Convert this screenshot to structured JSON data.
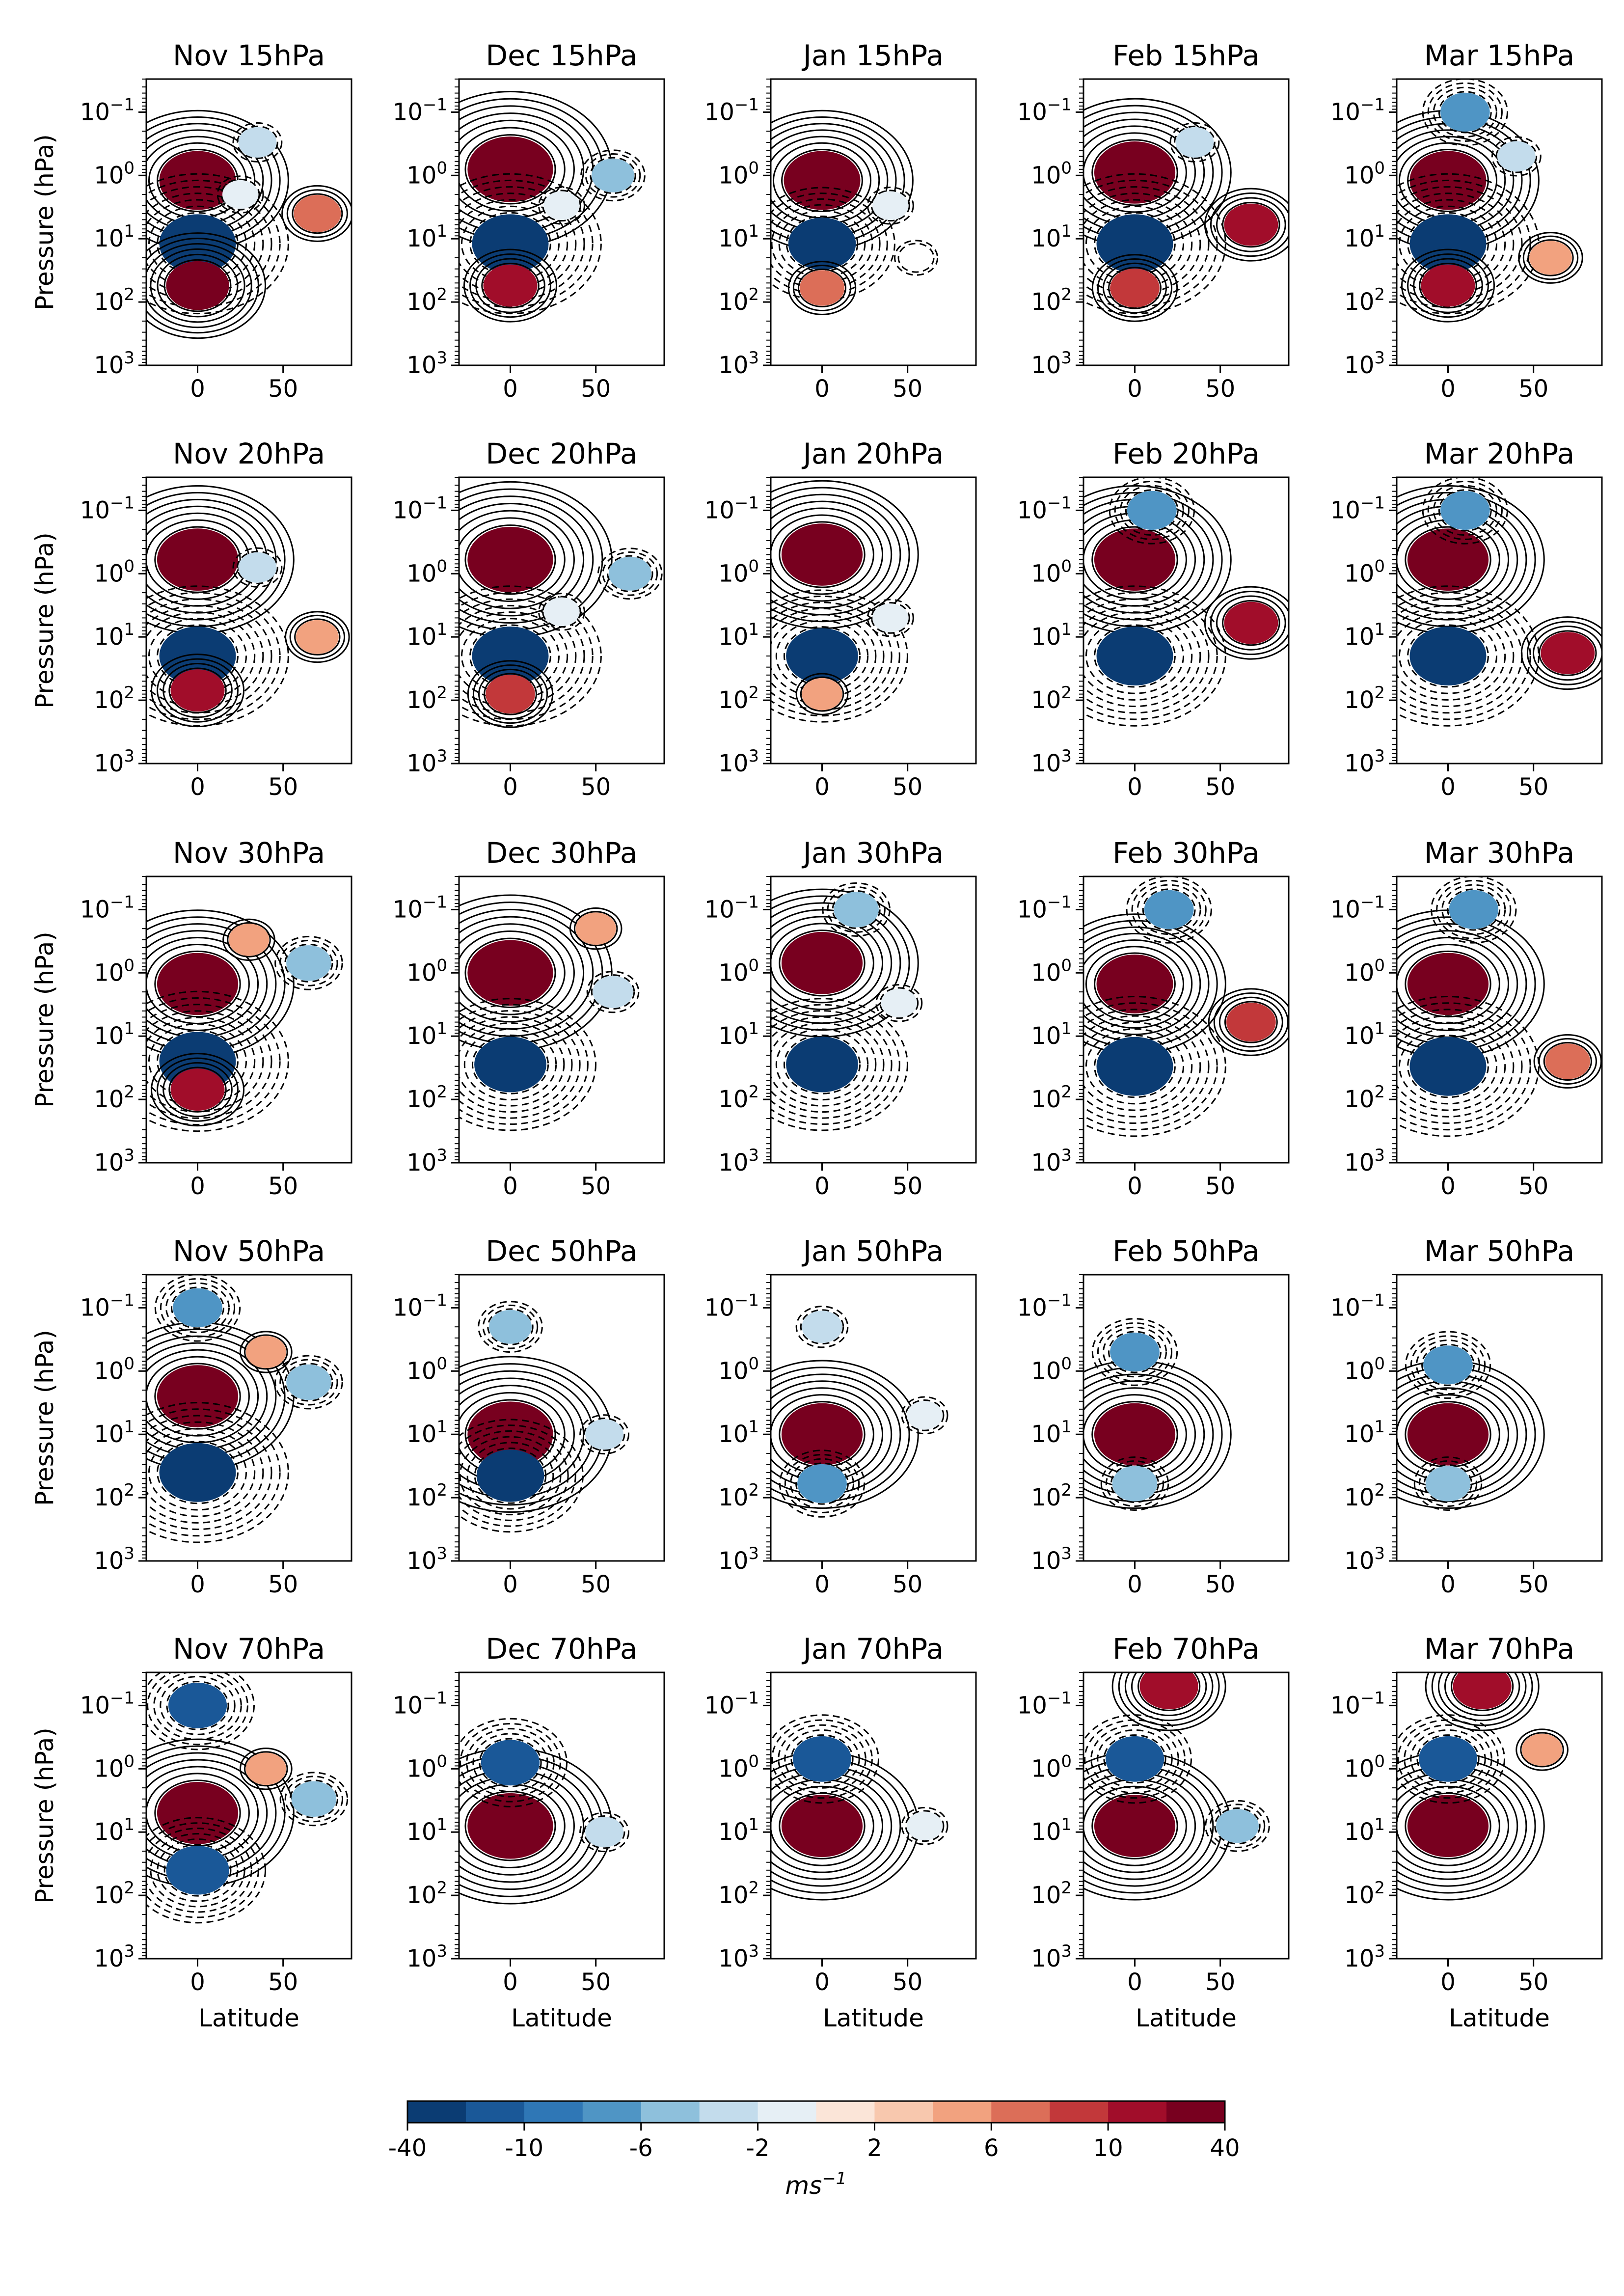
{
  "chart_data": {
    "type": "heatmap",
    "panel_grid": {
      "rows": 5,
      "cols": 5
    },
    "months": [
      "Nov",
      "Dec",
      "Jan",
      "Feb",
      "Mar"
    ],
    "levels": [
      "15hPa",
      "20hPa",
      "30hPa",
      "50hPa",
      "70hPa"
    ],
    "panel_titles": [
      [
        "Nov 15hPa",
        "Dec 15hPa",
        "Jan 15hPa",
        "Feb 15hPa",
        "Mar 15hPa"
      ],
      [
        "Nov 20hPa",
        "Dec 20hPa",
        "Jan 20hPa",
        "Feb 20hPa",
        "Mar 20hPa"
      ],
      [
        "Nov 30hPa",
        "Dec 30hPa",
        "Jan 30hPa",
        "Feb 30hPa",
        "Mar 30hPa"
      ],
      [
        "Nov 50hPa",
        "Dec 50hPa",
        "Jan 50hPa",
        "Feb 50hPa",
        "Mar 50hPa"
      ],
      [
        "Nov 70hPa",
        "Dec 70hPa",
        "Jan 70hPa",
        "Feb 70hPa",
        "Mar 70hPa"
      ]
    ],
    "xlabel": "Latitude",
    "ylabel": "Pressure (hPa)",
    "xlim": [
      -30,
      90
    ],
    "x_ticks": [
      "0",
      "50"
    ],
    "x_tick_values": [
      0,
      50
    ],
    "y_scale": "log",
    "y_inverted": true,
    "ylim": [
      1000,
      0.03
    ],
    "y_tick_values": [
      0.1,
      1,
      10,
      100,
      1000
    ],
    "y_tick_labels": [
      {
        "base": "10",
        "exp": "−1"
      },
      {
        "base": "10",
        "exp": "0"
      },
      {
        "base": "10",
        "exp": "1"
      },
      {
        "base": "10",
        "exp": "2"
      },
      {
        "base": "10",
        "exp": "3"
      }
    ],
    "grid": false,
    "colorbar": {
      "orientation": "horizontal",
      "placement": "bottom",
      "colors": [
        "#0b3c73",
        "#1a5898",
        "#2f77b6",
        "#4f95c5",
        "#8ec0dc",
        "#c3dcec",
        "#e6eff5",
        "#fbe5d8",
        "#f8c8ae",
        "#f2a27f",
        "#dc6e58",
        "#c2383a",
        "#a10d2a",
        "#78001f"
      ],
      "boundaries": [
        -40,
        -14,
        -10,
        -8,
        -6,
        -4,
        -2,
        0,
        2,
        4,
        6,
        8,
        10,
        14,
        40
      ],
      "tick_values": [
        -40,
        -10,
        -6,
        -2,
        2,
        6,
        10,
        40
      ],
      "tick_labels": [
        "-40",
        "-10",
        "-6",
        "-2",
        "2",
        "6",
        "10",
        "40"
      ],
      "label_base": "ms",
      "label_exp": "−1"
    },
    "panels": [
      [
        {
          "features": [
            {
              "lat": 0,
              "p": 1.2,
              "val": 20
            },
            {
              "lat": 0,
              "p": 12,
              "val": -20
            },
            {
              "lat": 0,
              "p": 55,
              "val": 14
            },
            {
              "lat": 70,
              "p": 4,
              "val": 7
            },
            {
              "lat": 35,
              "p": 0.3,
              "val": -3
            },
            {
              "lat": 25,
              "p": 2,
              "val": -2
            }
          ]
        },
        {
          "features": [
            {
              "lat": 0,
              "p": 0.8,
              "val": 24
            },
            {
              "lat": 0,
              "p": 12,
              "val": -20
            },
            {
              "lat": 0,
              "p": 55,
              "val": 10
            },
            {
              "lat": 60,
              "p": 1,
              "val": -5
            },
            {
              "lat": 30,
              "p": 3,
              "val": -2
            }
          ]
        },
        {
          "features": [
            {
              "lat": 0,
              "p": 1.2,
              "val": 20
            },
            {
              "lat": 0,
              "p": 12,
              "val": -16
            },
            {
              "lat": 0,
              "p": 60,
              "val": 6
            },
            {
              "lat": 40,
              "p": 3,
              "val": -2
            },
            {
              "lat": 55,
              "p": 20,
              "val": -1
            }
          ]
        },
        {
          "features": [
            {
              "lat": 0,
              "p": 0.9,
              "val": 22
            },
            {
              "lat": 0,
              "p": 12,
              "val": -20
            },
            {
              "lat": 0,
              "p": 60,
              "val": 8
            },
            {
              "lat": 68,
              "p": 6,
              "val": 10
            },
            {
              "lat": 35,
              "p": 0.3,
              "val": -3
            }
          ]
        },
        {
          "features": [
            {
              "lat": 0,
              "p": 1.2,
              "val": 20
            },
            {
              "lat": 0,
              "p": 12,
              "val": -20
            },
            {
              "lat": 0,
              "p": 55,
              "val": 10
            },
            {
              "lat": 60,
              "p": 20,
              "val": 5
            },
            {
              "lat": 40,
              "p": 0.5,
              "val": -3
            },
            {
              "lat": 10,
              "p": 0.1,
              "val": -8
            }
          ]
        }
      ],
      [
        {
          "features": [
            {
              "lat": 0,
              "p": 0.6,
              "val": 22
            },
            {
              "lat": 0,
              "p": 20,
              "val": -20
            },
            {
              "lat": 0,
              "p": 70,
              "val": 10
            },
            {
              "lat": 70,
              "p": 10,
              "val": 5
            },
            {
              "lat": 35,
              "p": 0.8,
              "val": -3
            }
          ]
        },
        {
          "features": [
            {
              "lat": 0,
              "p": 0.6,
              "val": 24
            },
            {
              "lat": 0,
              "p": 20,
              "val": -20
            },
            {
              "lat": 0,
              "p": 80,
              "val": 8
            },
            {
              "lat": 70,
              "p": 1,
              "val": -5
            },
            {
              "lat": 30,
              "p": 4,
              "val": -2
            }
          ]
        },
        {
          "features": [
            {
              "lat": 0,
              "p": 0.5,
              "val": 22
            },
            {
              "lat": 0,
              "p": 20,
              "val": -18
            },
            {
              "lat": 0,
              "p": 80,
              "val": 4
            },
            {
              "lat": 40,
              "p": 5,
              "val": -2
            }
          ]
        },
        {
          "features": [
            {
              "lat": 0,
              "p": 0.6,
              "val": 22
            },
            {
              "lat": 0,
              "p": 20,
              "val": -20
            },
            {
              "lat": 68,
              "p": 6,
              "val": 10
            },
            {
              "lat": 10,
              "p": 0.1,
              "val": -8
            }
          ]
        },
        {
          "features": [
            {
              "lat": 0,
              "p": 0.6,
              "val": 22
            },
            {
              "lat": 0,
              "p": 20,
              "val": -20
            },
            {
              "lat": 70,
              "p": 18,
              "val": 10
            },
            {
              "lat": 10,
              "p": 0.1,
              "val": -8
            }
          ]
        }
      ],
      [
        {
          "features": [
            {
              "lat": 0,
              "p": 1.5,
              "val": 22
            },
            {
              "lat": 0,
              "p": 25,
              "val": -20
            },
            {
              "lat": 0,
              "p": 70,
              "val": 10
            },
            {
              "lat": 65,
              "p": 0.7,
              "val": -6
            },
            {
              "lat": 30,
              "p": 0.3,
              "val": 4
            }
          ]
        },
        {
          "features": [
            {
              "lat": 0,
              "p": 1,
              "val": 24
            },
            {
              "lat": 0,
              "p": 28,
              "val": -18
            },
            {
              "lat": 60,
              "p": 2,
              "val": -4
            },
            {
              "lat": 50,
              "p": 0.2,
              "val": 4
            }
          ]
        },
        {
          "features": [
            {
              "lat": 0,
              "p": 0.7,
              "val": 22
            },
            {
              "lat": 0,
              "p": 28,
              "val": -18
            },
            {
              "lat": 20,
              "p": 0.1,
              "val": -6
            },
            {
              "lat": 45,
              "p": 3,
              "val": -2
            }
          ]
        },
        {
          "features": [
            {
              "lat": 0,
              "p": 1.5,
              "val": 20
            },
            {
              "lat": 0,
              "p": 30,
              "val": -20
            },
            {
              "lat": 68,
              "p": 6,
              "val": 8
            },
            {
              "lat": 20,
              "p": 0.1,
              "val": -8
            }
          ]
        },
        {
          "features": [
            {
              "lat": 0,
              "p": 1.5,
              "val": 22
            },
            {
              "lat": 0,
              "p": 30,
              "val": -20
            },
            {
              "lat": 70,
              "p": 25,
              "val": 6
            },
            {
              "lat": 15,
              "p": 0.1,
              "val": -8
            }
          ]
        }
      ],
      [
        {
          "features": [
            {
              "lat": 0,
              "p": 2.5,
              "val": 22
            },
            {
              "lat": 0,
              "p": 40,
              "val": -20
            },
            {
              "lat": 0,
              "p": 0.1,
              "val": -8
            },
            {
              "lat": 65,
              "p": 1.5,
              "val": -6
            },
            {
              "lat": 40,
              "p": 0.5,
              "val": 4
            }
          ]
        },
        {
          "features": [
            {
              "lat": 0,
              "p": 10,
              "val": 24
            },
            {
              "lat": 0,
              "p": 45,
              "val": -16
            },
            {
              "lat": 0,
              "p": 0.2,
              "val": -5
            },
            {
              "lat": 55,
              "p": 10,
              "val": -3
            }
          ]
        },
        {
          "features": [
            {
              "lat": 0,
              "p": 10,
              "val": 22
            },
            {
              "lat": 0,
              "p": 60,
              "val": -8
            },
            {
              "lat": 0,
              "p": 0.2,
              "val": -4
            },
            {
              "lat": 60,
              "p": 5,
              "val": -2
            }
          ]
        },
        {
          "features": [
            {
              "lat": 0,
              "p": 10,
              "val": 22
            },
            {
              "lat": 0,
              "p": 0.5,
              "val": -8
            },
            {
              "lat": 0,
              "p": 60,
              "val": -6
            }
          ]
        },
        {
          "features": [
            {
              "lat": 0,
              "p": 10,
              "val": 22
            },
            {
              "lat": 0,
              "p": 0.8,
              "val": -8
            },
            {
              "lat": 0,
              "p": 60,
              "val": -6
            }
          ]
        }
      ],
      [
        {
          "features": [
            {
              "lat": 0,
              "p": 5,
              "val": 22
            },
            {
              "lat": 0,
              "p": 0.1,
              "val": -12
            },
            {
              "lat": 0,
              "p": 40,
              "val": -14
            },
            {
              "lat": 68,
              "p": 3,
              "val": -6
            },
            {
              "lat": 40,
              "p": 1,
              "val": 4
            }
          ]
        },
        {
          "features": [
            {
              "lat": 0,
              "p": 8,
              "val": 24
            },
            {
              "lat": 0,
              "p": 0.8,
              "val": -12
            },
            {
              "lat": 55,
              "p": 10,
              "val": -3
            }
          ]
        },
        {
          "features": [
            {
              "lat": 0,
              "p": 8,
              "val": 22
            },
            {
              "lat": 0,
              "p": 0.7,
              "val": -12
            },
            {
              "lat": 60,
              "p": 8,
              "val": -2
            }
          ]
        },
        {
          "features": [
            {
              "lat": 0,
              "p": 8,
              "val": 22
            },
            {
              "lat": 0,
              "p": 0.7,
              "val": -12
            },
            {
              "lat": 60,
              "p": 8,
              "val": -5
            },
            {
              "lat": 20,
              "p": 0.05,
              "val": 12
            }
          ]
        },
        {
          "features": [
            {
              "lat": 0,
              "p": 8,
              "val": 22
            },
            {
              "lat": 0,
              "p": 0.7,
              "val": -12
            },
            {
              "lat": 20,
              "p": 0.05,
              "val": 12
            },
            {
              "lat": 55,
              "p": 0.5,
              "val": 4
            }
          ]
        }
      ]
    ]
  }
}
